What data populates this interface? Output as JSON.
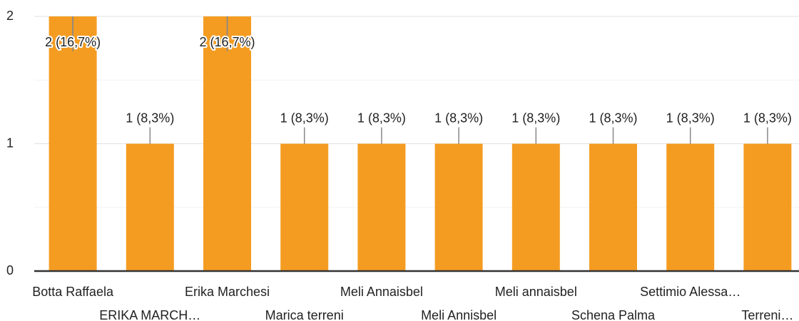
{
  "chart_data": {
    "type": "bar",
    "categories": [
      "Botta Raffaela",
      "ERIKA MARCH…",
      "Erika Marchesi",
      "Marica terreni",
      "Meli Annaisbel",
      "Meli Annisbel",
      "Meli annaisbel",
      "Schena Palma",
      "Settimio Alessa…",
      "Terreni…"
    ],
    "values": [
      2,
      1,
      2,
      1,
      1,
      1,
      1,
      1,
      1,
      1
    ],
    "value_labels": [
      "2 (16,7%)",
      "1 (8,3%)",
      "2 (16,7%)",
      "1 (8,3%)",
      "1 (8,3%)",
      "1 (8,3%)",
      "1 (8,3%)",
      "1 (8,3%)",
      "1 (8,3%)",
      "1 (8,3%)"
    ],
    "color": "#f49c22",
    "ylim": [
      0,
      2
    ],
    "yticks": [
      0,
      1,
      2
    ],
    "minor_yticks": [
      0.5,
      1.5
    ],
    "grid": true
  }
}
